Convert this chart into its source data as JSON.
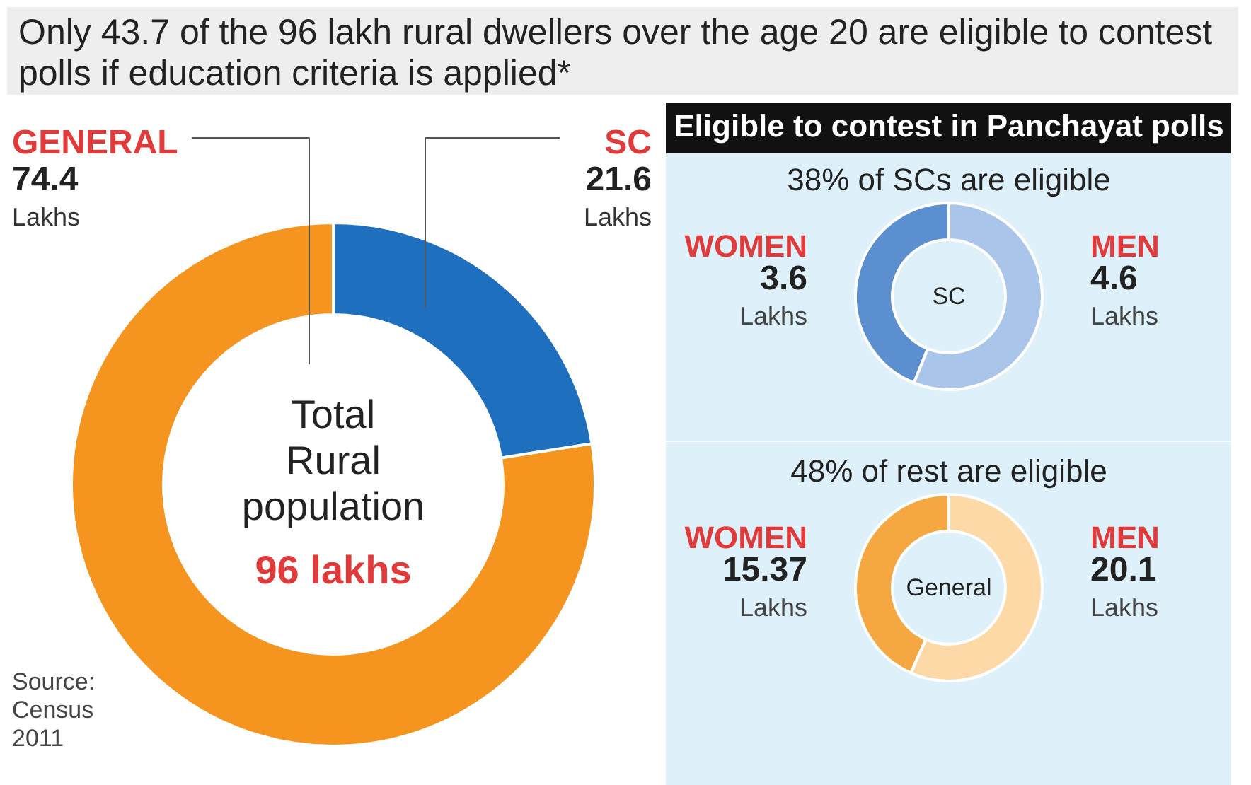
{
  "chart_data": [
    {
      "type": "donut",
      "title": "Only 43.7 of the 96 lakh rural dwellers over the age 20 are eligible to contest polls if education criteria is applied*",
      "categories": [
        "GENERAL",
        "SC"
      ],
      "values": [
        74.4,
        21.6
      ],
      "colors": [
        "#f5941e",
        "#1f6fbf"
      ],
      "value_labels": [
        "74.4\nLakhs",
        "21.6\nLakhs"
      ],
      "annotations": [
        "Total\nRural\npopulation",
        "96 lakhs",
        "Source:\nCensus\n2011"
      ],
      "legend": false
    },
    {
      "type": "donut",
      "subtitle": "Eligible to contest in Panchayat polls",
      "title": "38% of SCs are eligible",
      "categories": [
        "WOMEN",
        "MEN"
      ],
      "values": [
        3.6,
        4.6
      ],
      "colors": [
        "#5b8fd0",
        "#a9c6ea"
      ],
      "value_labels": [
        "3.6\nLakhs",
        "4.6\nLakhs"
      ],
      "annotations": [
        "SC"
      ],
      "legend": false
    },
    {
      "type": "donut",
      "title": "48% of rest are eligible",
      "categories": [
        "WOMEN",
        "MEN"
      ],
      "values": [
        15.37,
        20.1
      ],
      "colors": [
        "#f5a742",
        "#fcd9a6"
      ],
      "value_labels": [
        "15.37\nLakhs",
        "20.1\nLakhs"
      ],
      "annotations": [
        "General"
      ],
      "legend": false
    }
  ]
}
